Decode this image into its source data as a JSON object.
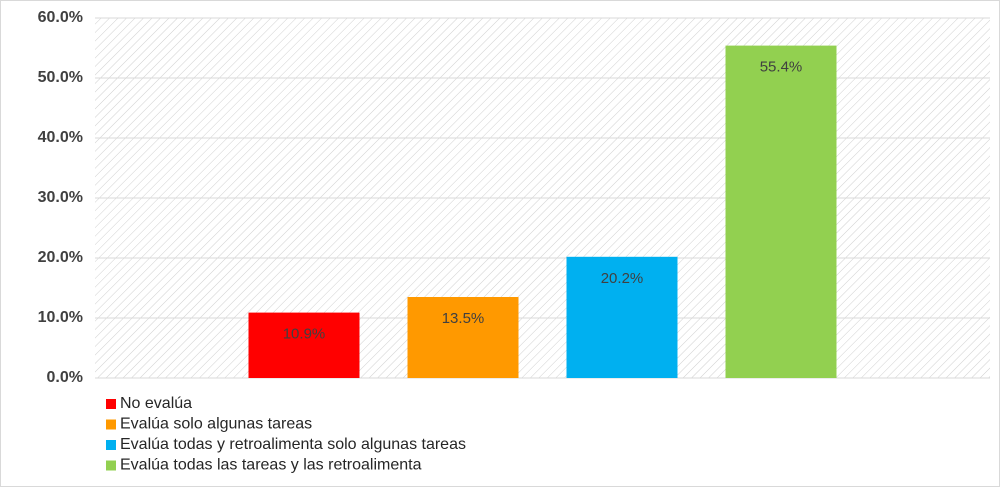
{
  "chart_data": {
    "type": "bar",
    "series": [
      {
        "name": "No evalúa",
        "color": "#ff0000",
        "values": [
          10.9
        ],
        "value_labels": [
          "10.9%"
        ]
      },
      {
        "name": "Evalúa solo algunas tareas",
        "color": "#ff9900",
        "values": [
          13.5
        ],
        "value_labels": [
          "13.5%"
        ]
      },
      {
        "name": "Evalúa todas y retroalimenta solo algunas tareas",
        "color": "#00b0f0",
        "values": [
          20.2
        ],
        "value_labels": [
          "20.2%"
        ]
      },
      {
        "name": "Evalúa todas las tareas y las retroalimenta",
        "color": "#92d050",
        "values": [
          55.4
        ],
        "value_labels": [
          "55.4%"
        ]
      }
    ],
    "ylim": [
      0,
      60
    ],
    "yticks": [
      {
        "value": 0,
        "label": "0.0%"
      },
      {
        "value": 10,
        "label": "10.0%"
      },
      {
        "value": 20,
        "label": "20.0%"
      },
      {
        "value": 30,
        "label": "30.0%"
      },
      {
        "value": 40,
        "label": "40.0%"
      },
      {
        "value": 50,
        "label": "50.0%"
      },
      {
        "value": 60,
        "label": "60.0%"
      }
    ],
    "grid": true,
    "legend": "bottom"
  }
}
